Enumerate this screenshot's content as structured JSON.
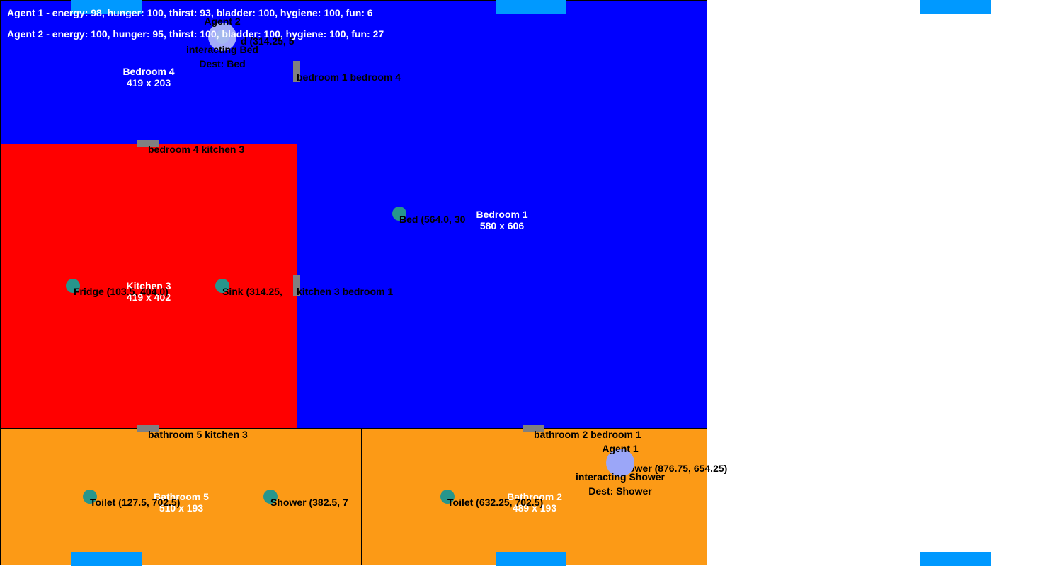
{
  "colors": {
    "bedroom": "#0000ff",
    "kitchen": "#ff0000",
    "bathroom": "#fc9a16",
    "door": "#808080",
    "object": "#27968c",
    "agent": "#9ba6f8",
    "marker": "#0099ff"
  },
  "rooms": {
    "bedroom4": {
      "name": "Bedroom 4",
      "size": "419 x 203"
    },
    "bedroom1": {
      "name": "Bedroom 1",
      "size": "580 x 606"
    },
    "kitchen3": {
      "name": "Kitchen 3",
      "size": "419 x 402"
    },
    "bathroom5": {
      "name": "Bathroom 5",
      "size": "510 x 193"
    },
    "bathroom2": {
      "name": "Bathroom 2",
      "size": "489 x 193"
    }
  },
  "doors": {
    "bedroom1_bedroom4": "bedroom 1 bedroom 4",
    "bedroom4_kitchen3": "bedroom 4 kitchen 3",
    "kitchen3_bedroom1": "kitchen 3 bedroom 1",
    "bathroom5_kitchen3": "bathroom 5 kitchen 3",
    "bathroom2_bedroom1": "bathroom 2 bedroom 1"
  },
  "objects": {
    "bed_bedroom4": "d (314.25, 5",
    "bed_bedroom1": "Bed (564.0, 30",
    "fridge": "Fridge (103.5, 404.0)",
    "sink": "Sink (314.25, ",
    "toilet_bathroom5": "Toilet (127.5, 702.5)",
    "shower_bathroom5": "Shower (382.5, 7",
    "toilet_bathroom2": "Toilet (632.25, 702.5)",
    "shower_bathroom2": "ower (876.75, 654.25)"
  },
  "agents": {
    "agent1": {
      "name": "Agent 1",
      "action": "interacting Shower",
      "dest": "Dest: Shower"
    },
    "agent2": {
      "name": "Agent 2",
      "action": "interacting Bed",
      "dest": "Dest: Bed"
    }
  },
  "stats": {
    "agent1": "Agent 1 - energy: 98, hunger: 100, thirst: 93, bladder: 100, hygiene: 100, fun: 6",
    "agent2": "Agent 2 - energy: 100, hunger: 95, thirst: 100, bladder: 100, hygiene: 100, fun: 27"
  }
}
